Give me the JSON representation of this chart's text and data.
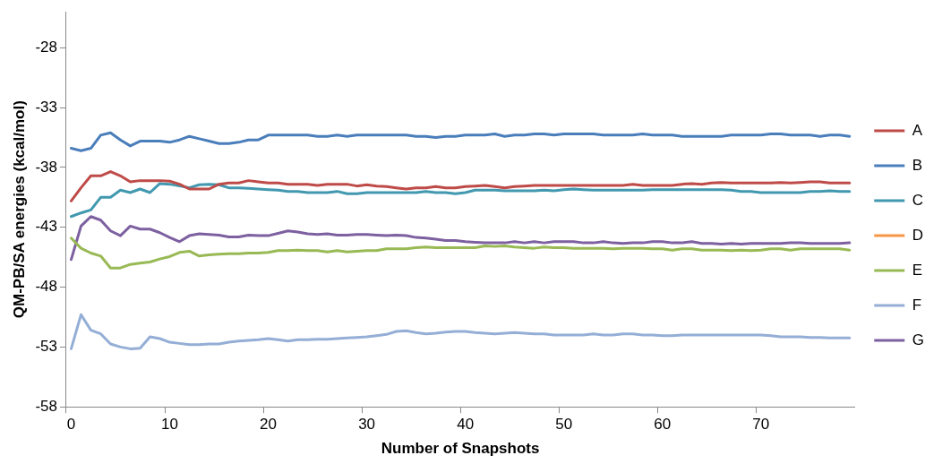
{
  "chart_data": {
    "type": "line",
    "xlabel": "Number of Snapshots",
    "ylabel": "QM-PB/SA energies (kcal/mol)",
    "categories": [
      "0",
      null,
      null,
      null,
      null,
      null,
      null,
      null,
      null,
      null,
      "10",
      null,
      null,
      null,
      null,
      null,
      null,
      null,
      null,
      null,
      "20",
      null,
      null,
      null,
      null,
      null,
      null,
      null,
      null,
      null,
      "30",
      null,
      null,
      null,
      null,
      null,
      null,
      null,
      null,
      null,
      "40",
      null,
      null,
      null,
      null,
      null,
      null,
      null,
      null,
      null,
      "50",
      null,
      null,
      null,
      null,
      null,
      null,
      null,
      null,
      null,
      "60",
      null,
      null,
      null,
      null,
      null,
      null,
      null,
      null,
      null,
      "70",
      null,
      null,
      null,
      null,
      null,
      null,
      null,
      null,
      null
    ],
    "ylim": [
      -58,
      -25
    ],
    "yticks": [
      -58,
      -53,
      -48,
      -43,
      -38,
      -33,
      -28
    ],
    "grid": false,
    "legend": "right",
    "marker": "none",
    "line_style": "solid",
    "series": [
      {
        "name": "A",
        "color": "#be4b48",
        "values": [
          -40.8,
          -39.7,
          -38.7,
          -38.7,
          -38.35,
          -38.7,
          -39.2,
          -39.1,
          -39.1,
          -39.1,
          -39.15,
          -39.4,
          -39.8,
          -39.8,
          -39.8,
          -39.4,
          -39.3,
          -39.3,
          -39.1,
          -39.2,
          -39.3,
          -39.3,
          -39.4,
          -39.4,
          -39.4,
          -39.5,
          -39.4,
          -39.4,
          -39.4,
          -39.55,
          -39.45,
          -39.55,
          -39.6,
          -39.7,
          -39.8,
          -39.7,
          -39.7,
          -39.6,
          -39.7,
          -39.7,
          -39.6,
          -39.55,
          -39.5,
          -39.6,
          -39.7,
          -39.6,
          -39.55,
          -39.5,
          -39.5,
          -39.5,
          -39.5,
          -39.5,
          -39.5,
          -39.5,
          -39.5,
          -39.5,
          -39.5,
          -39.4,
          -39.5,
          -39.5,
          -39.5,
          -39.5,
          -39.4,
          -39.35,
          -39.4,
          -39.3,
          -39.25,
          -39.3,
          -39.3,
          -39.3,
          -39.3,
          -39.3,
          -39.25,
          -39.3,
          -39.25,
          -39.2,
          -39.2,
          -39.3,
          -39.3,
          -39.3
        ]
      },
      {
        "name": "B",
        "color": "#4a7ebb",
        "values": [
          -36.4,
          -36.6,
          -36.4,
          -35.3,
          -35.1,
          -35.7,
          -36.2,
          -35.8,
          -35.8,
          -35.8,
          -35.9,
          -35.7,
          -35.4,
          -35.6,
          -35.8,
          -36.0,
          -36.0,
          -35.9,
          -35.7,
          -35.7,
          -35.3,
          -35.3,
          -35.3,
          -35.3,
          -35.3,
          -35.4,
          -35.4,
          -35.3,
          -35.4,
          -35.3,
          -35.3,
          -35.3,
          -35.3,
          -35.3,
          -35.3,
          -35.4,
          -35.4,
          -35.5,
          -35.4,
          -35.4,
          -35.3,
          -35.3,
          -35.3,
          -35.2,
          -35.4,
          -35.3,
          -35.3,
          -35.2,
          -35.2,
          -35.3,
          -35.2,
          -35.2,
          -35.2,
          -35.2,
          -35.3,
          -35.3,
          -35.3,
          -35.3,
          -35.2,
          -35.3,
          -35.3,
          -35.3,
          -35.4,
          -35.4,
          -35.4,
          -35.4,
          -35.4,
          -35.3,
          -35.3,
          -35.3,
          -35.3,
          -35.2,
          -35.2,
          -35.3,
          -35.3,
          -35.3,
          -35.4,
          -35.3,
          -35.3,
          -35.4
        ]
      },
      {
        "name": "C",
        "color": "#4198af",
        "values": [
          -42.1,
          -41.8,
          -41.55,
          -40.5,
          -40.5,
          -39.9,
          -40.1,
          -39.8,
          -40.1,
          -39.35,
          -39.4,
          -39.55,
          -39.7,
          -39.45,
          -39.4,
          -39.45,
          -39.7,
          -39.7,
          -39.75,
          -39.8,
          -39.85,
          -39.9,
          -40.0,
          -40.0,
          -40.1,
          -40.1,
          -40.1,
          -40.0,
          -40.2,
          -40.2,
          -40.1,
          -40.1,
          -40.1,
          -40.1,
          -40.1,
          -40.1,
          -40.0,
          -40.1,
          -40.1,
          -40.2,
          -40.1,
          -39.9,
          -39.9,
          -39.9,
          -39.95,
          -39.95,
          -39.95,
          -39.95,
          -39.9,
          -39.95,
          -39.85,
          -39.8,
          -39.85,
          -39.9,
          -39.9,
          -39.9,
          -39.9,
          -39.9,
          -39.9,
          -39.85,
          -39.85,
          -39.85,
          -39.85,
          -39.85,
          -39.85,
          -39.85,
          -39.85,
          -39.9,
          -40.0,
          -40.0,
          -40.1,
          -40.1,
          -40.1,
          -40.1,
          -40.1,
          -40.0,
          -40.0,
          -39.95,
          -40.0,
          -40.0
        ]
      },
      {
        "name": "D",
        "color": "#f79646",
        "values": [
          null,
          null,
          null,
          null,
          null,
          null,
          null,
          null,
          null,
          null,
          null,
          null,
          null,
          null,
          null,
          null,
          null,
          null,
          null,
          null,
          null,
          null,
          null,
          null,
          null,
          null,
          null,
          null,
          null,
          null,
          null,
          null,
          null,
          null,
          null,
          null,
          null,
          null,
          null,
          null,
          null,
          null,
          null,
          null,
          null,
          null,
          null,
          null,
          null,
          null,
          null,
          null,
          null,
          null,
          null,
          null,
          null,
          null,
          null,
          null,
          null,
          null,
          null,
          null,
          null,
          null,
          null,
          null,
          null,
          null,
          null,
          null,
          null,
          null,
          null,
          null,
          null,
          null,
          null,
          null
        ]
      },
      {
        "name": "E",
        "color": "#98b954",
        "values": [
          -43.9,
          -44.75,
          -45.15,
          -45.4,
          -46.4,
          -46.4,
          -46.1,
          -46.0,
          -45.9,
          -45.65,
          -45.45,
          -45.1,
          -45.0,
          -45.4,
          -45.3,
          -45.25,
          -45.2,
          -45.2,
          -45.15,
          -45.15,
          -45.1,
          -44.95,
          -44.95,
          -44.9,
          -44.95,
          -44.95,
          -45.05,
          -44.95,
          -45.05,
          -45.0,
          -44.95,
          -44.95,
          -44.8,
          -44.8,
          -44.8,
          -44.7,
          -44.65,
          -44.7,
          -44.7,
          -44.7,
          -44.7,
          -44.7,
          -44.55,
          -44.6,
          -44.55,
          -44.65,
          -44.7,
          -44.75,
          -44.65,
          -44.7,
          -44.7,
          -44.75,
          -44.75,
          -44.75,
          -44.75,
          -44.8,
          -44.75,
          -44.75,
          -44.75,
          -44.8,
          -44.8,
          -44.9,
          -44.8,
          -44.8,
          -44.9,
          -44.9,
          -44.9,
          -44.95,
          -44.9,
          -44.95,
          -44.9,
          -44.8,
          -44.8,
          -44.9,
          -44.8,
          -44.8,
          -44.8,
          -44.8,
          -44.8,
          -44.9
        ]
      },
      {
        "name": "F",
        "color": "#94aed6",
        "values": [
          -53.15,
          -50.3,
          -51.6,
          -51.9,
          -52.75,
          -53.0,
          -53.15,
          -53.1,
          -52.15,
          -52.3,
          -52.6,
          -52.7,
          -52.8,
          -52.8,
          -52.75,
          -52.75,
          -52.6,
          -52.5,
          -52.45,
          -52.4,
          -52.3,
          -52.4,
          -52.5,
          -52.4,
          -52.4,
          -52.35,
          -52.35,
          -52.3,
          -52.25,
          -52.2,
          -52.15,
          -52.05,
          -51.95,
          -51.7,
          -51.65,
          -51.8,
          -51.9,
          -51.85,
          -51.75,
          -51.7,
          -51.7,
          -51.8,
          -51.85,
          -51.9,
          -51.85,
          -51.8,
          -51.85,
          -51.9,
          -51.9,
          -52.0,
          -52.0,
          -52.0,
          -52.0,
          -51.9,
          -52.0,
          -52.0,
          -51.9,
          -51.9,
          -52.0,
          -52.0,
          -52.05,
          -52.05,
          -52.0,
          -52.0,
          -52.0,
          -52.0,
          -52.0,
          -52.0,
          -52.0,
          -52.0,
          -52.0,
          -52.05,
          -52.15,
          -52.15,
          -52.15,
          -52.2,
          -52.2,
          -52.25,
          -52.25,
          -52.25
        ]
      },
      {
        "name": "G",
        "color": "#7d60a0",
        "values": [
          -45.7,
          -42.9,
          -42.1,
          -42.4,
          -43.3,
          -43.7,
          -42.9,
          -43.15,
          -43.15,
          -43.45,
          -43.85,
          -44.2,
          -43.7,
          -43.55,
          -43.6,
          -43.65,
          -43.8,
          -43.8,
          -43.65,
          -43.7,
          -43.7,
          -43.5,
          -43.3,
          -43.4,
          -43.55,
          -43.6,
          -43.55,
          -43.65,
          -43.65,
          -43.6,
          -43.6,
          -43.65,
          -43.7,
          -43.65,
          -43.7,
          -43.85,
          -43.9,
          -44.0,
          -44.1,
          -44.1,
          -44.2,
          -44.25,
          -44.3,
          -44.3,
          -44.3,
          -44.2,
          -44.3,
          -44.2,
          -44.3,
          -44.2,
          -44.2,
          -44.2,
          -44.3,
          -44.3,
          -44.2,
          -44.3,
          -44.35,
          -44.3,
          -44.3,
          -44.2,
          -44.2,
          -44.3,
          -44.3,
          -44.2,
          -44.35,
          -44.35,
          -44.4,
          -44.35,
          -44.4,
          -44.35,
          -44.35,
          -44.35,
          -44.35,
          -44.3,
          -44.3,
          -44.35,
          -44.35,
          -44.35,
          -44.35,
          -44.3
        ]
      }
    ]
  }
}
